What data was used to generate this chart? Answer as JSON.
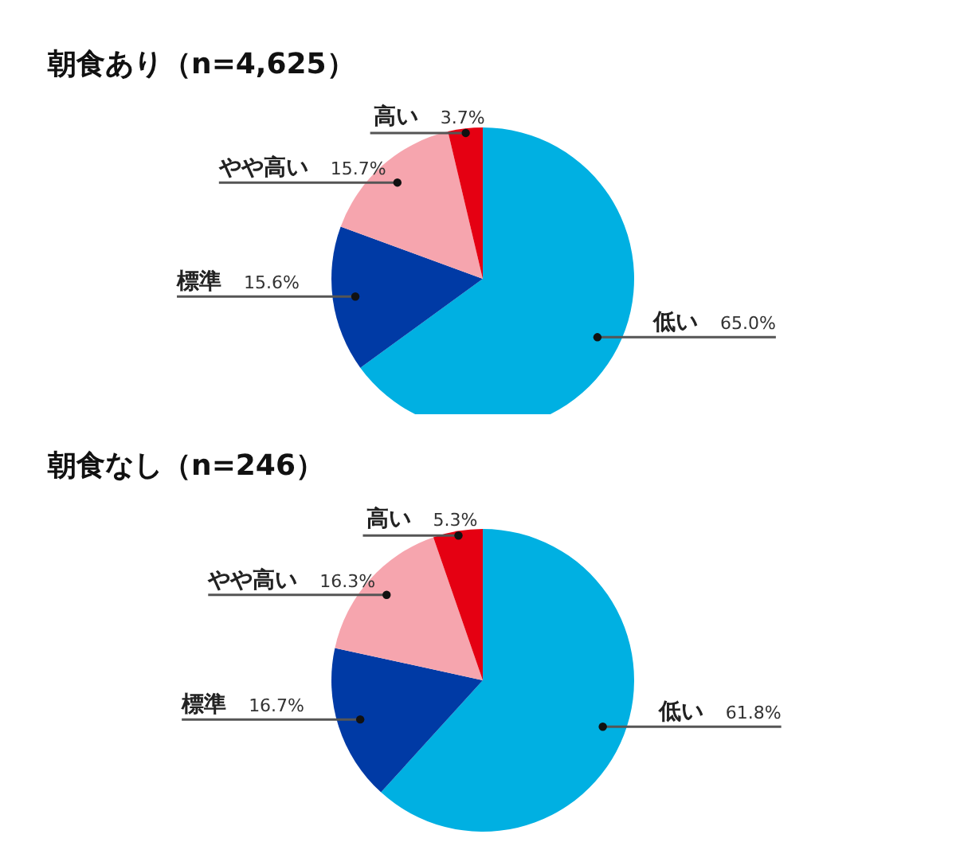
{
  "chart_data": [
    {
      "type": "pie",
      "title": "朝食あり（n=4,625）",
      "categories": [
        "低い",
        "標準",
        "やや高い",
        "高い"
      ],
      "values": [
        65.0,
        15.6,
        15.7,
        3.7
      ],
      "colors": [
        "#00b0e2",
        "#003aa5",
        "#f6a5ae",
        "#e50012"
      ],
      "value_labels": [
        "65.0%",
        "15.6%",
        "15.7%",
        "3.7%"
      ]
    },
    {
      "type": "pie",
      "title": "朝食なし（n=246）",
      "categories": [
        "低い",
        "標準",
        "やや高い",
        "高い"
      ],
      "values": [
        61.8,
        16.7,
        16.3,
        5.3
      ],
      "colors": [
        "#00b0e2",
        "#003aa5",
        "#f6a5ae",
        "#e50012"
      ],
      "value_labels": [
        "61.8%",
        "16.7%",
        "16.3%",
        "5.3%"
      ]
    }
  ]
}
